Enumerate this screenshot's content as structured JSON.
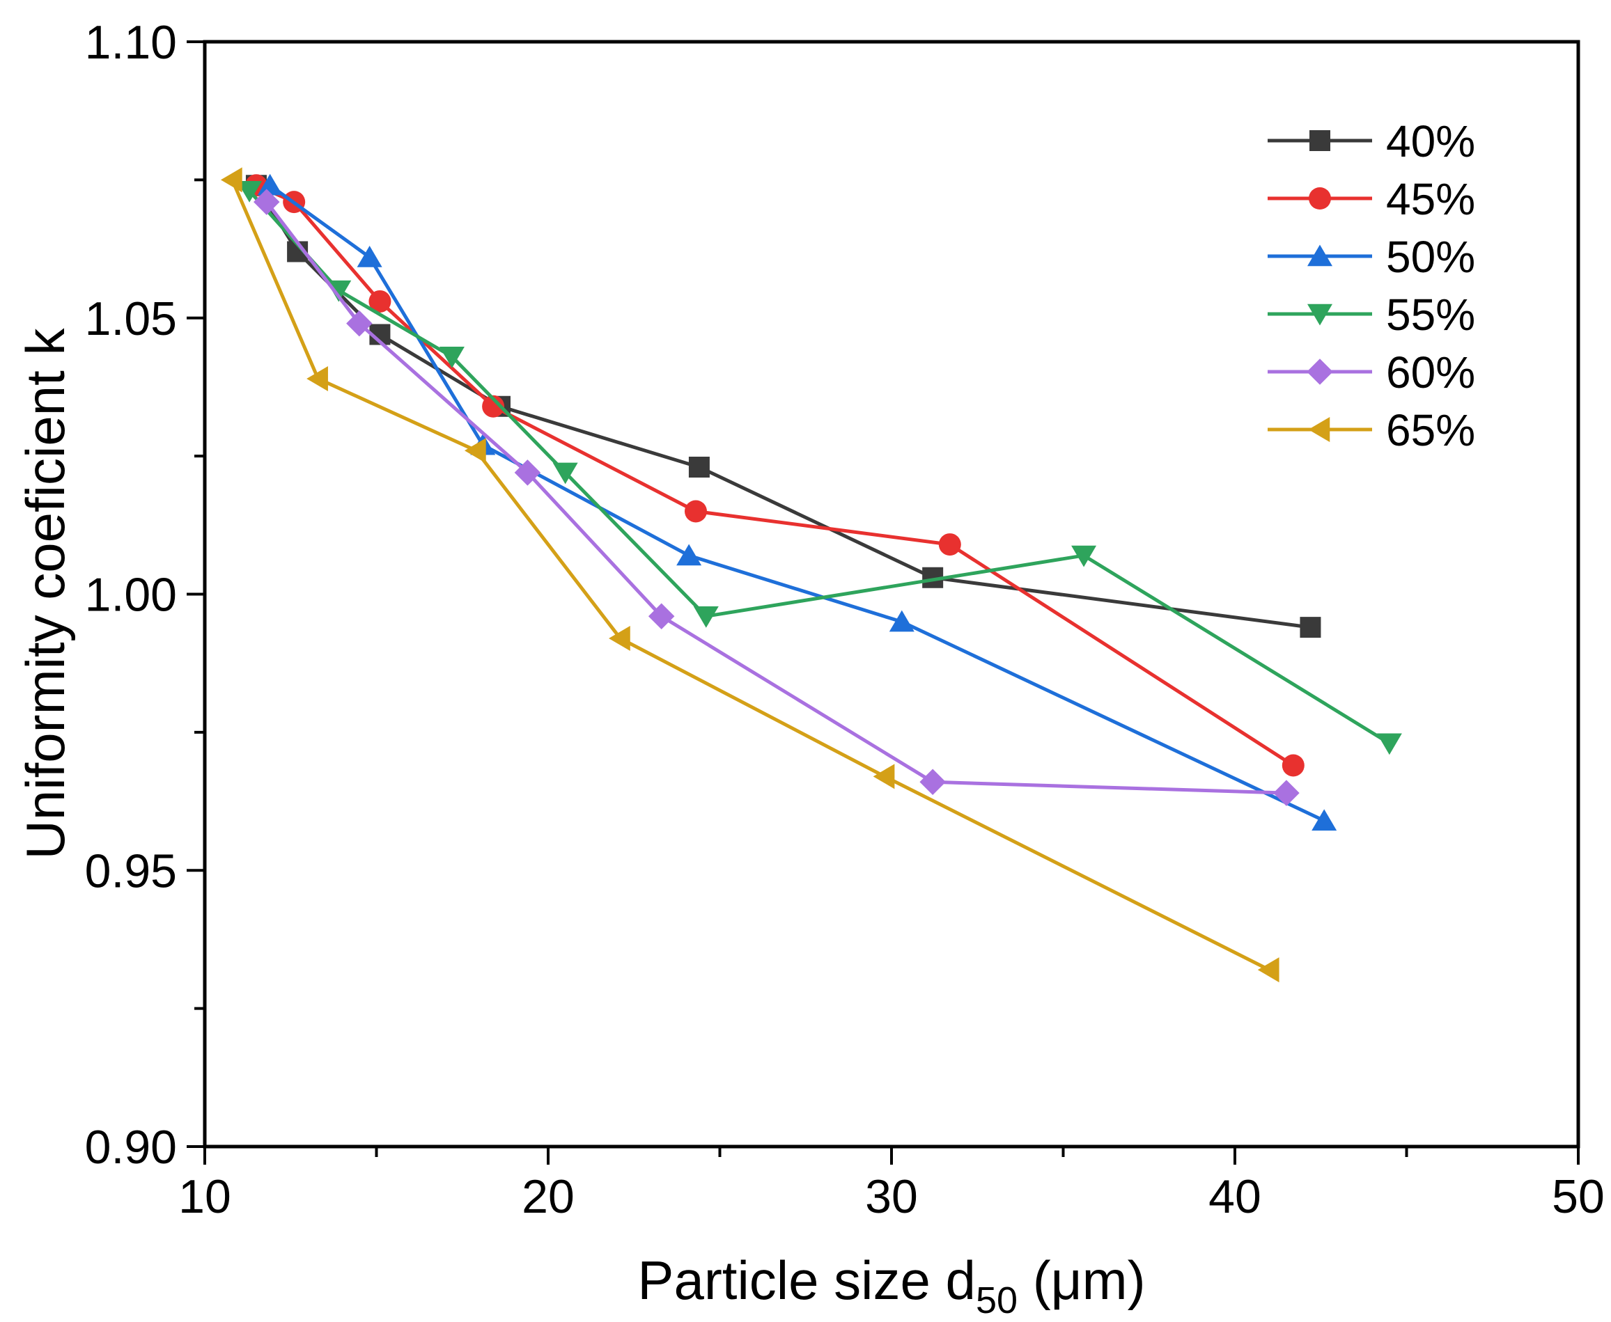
{
  "chart_data": {
    "type": "line",
    "title": "",
    "xlabel": "Particle size d",
    "xlabel_sub": "50",
    "xlabel_unit": " (μm)",
    "ylabel": "Uniformity coeficient k",
    "xlim": [
      10,
      50
    ],
    "ylim": [
      0.9,
      1.1
    ],
    "xticks": [
      10,
      20,
      30,
      40,
      50
    ],
    "xtick_labels": [
      "10",
      "20",
      "30",
      "40",
      "50"
    ],
    "yticks": [
      0.9,
      0.95,
      1.0,
      1.05,
      1.1
    ],
    "ytick_labels": [
      "0.90",
      "0.95",
      "1.00",
      "1.05",
      "1.10"
    ],
    "legend_position": "top-right",
    "grid": false,
    "series": [
      {
        "name": "40%",
        "color": "#3a3a3a",
        "marker": "square",
        "x": [
          11.5,
          12.7,
          15.1,
          18.6,
          24.4,
          31.2,
          42.2
        ],
        "y": [
          1.074,
          1.062,
          1.047,
          1.034,
          1.023,
          1.003,
          0.994
        ]
      },
      {
        "name": "45%",
        "color": "#e8312f",
        "marker": "circle",
        "x": [
          11.5,
          12.6,
          15.1,
          18.4,
          24.3,
          31.7,
          41.7
        ],
        "y": [
          1.074,
          1.071,
          1.053,
          1.034,
          1.015,
          1.009,
          0.969
        ]
      },
      {
        "name": "50%",
        "color": "#1e6fd9",
        "marker": "triangle-up",
        "x": [
          11.9,
          14.8,
          18.1,
          24.1,
          30.3,
          42.6
        ],
        "y": [
          1.074,
          1.061,
          1.027,
          1.007,
          0.995,
          0.959
        ]
      },
      {
        "name": "55%",
        "color": "#2ea45c",
        "marker": "triangle-down",
        "x": [
          11.3,
          13.9,
          17.2,
          20.5,
          24.6,
          35.6,
          44.5
        ],
        "y": [
          1.073,
          1.055,
          1.043,
          1.022,
          0.996,
          1.007,
          0.973
        ]
      },
      {
        "name": "60%",
        "color": "#a971e0",
        "marker": "diamond",
        "x": [
          11.8,
          14.5,
          19.4,
          23.3,
          31.2,
          41.5
        ],
        "y": [
          1.071,
          1.049,
          1.022,
          0.996,
          0.966,
          0.964
        ]
      },
      {
        "name": "65%",
        "color": "#d4a017",
        "marker": "triangle-left",
        "x": [
          10.8,
          13.3,
          17.9,
          22.1,
          29.8,
          41.0
        ],
        "y": [
          1.075,
          1.039,
          1.026,
          0.992,
          0.967,
          0.932
        ]
      }
    ]
  }
}
